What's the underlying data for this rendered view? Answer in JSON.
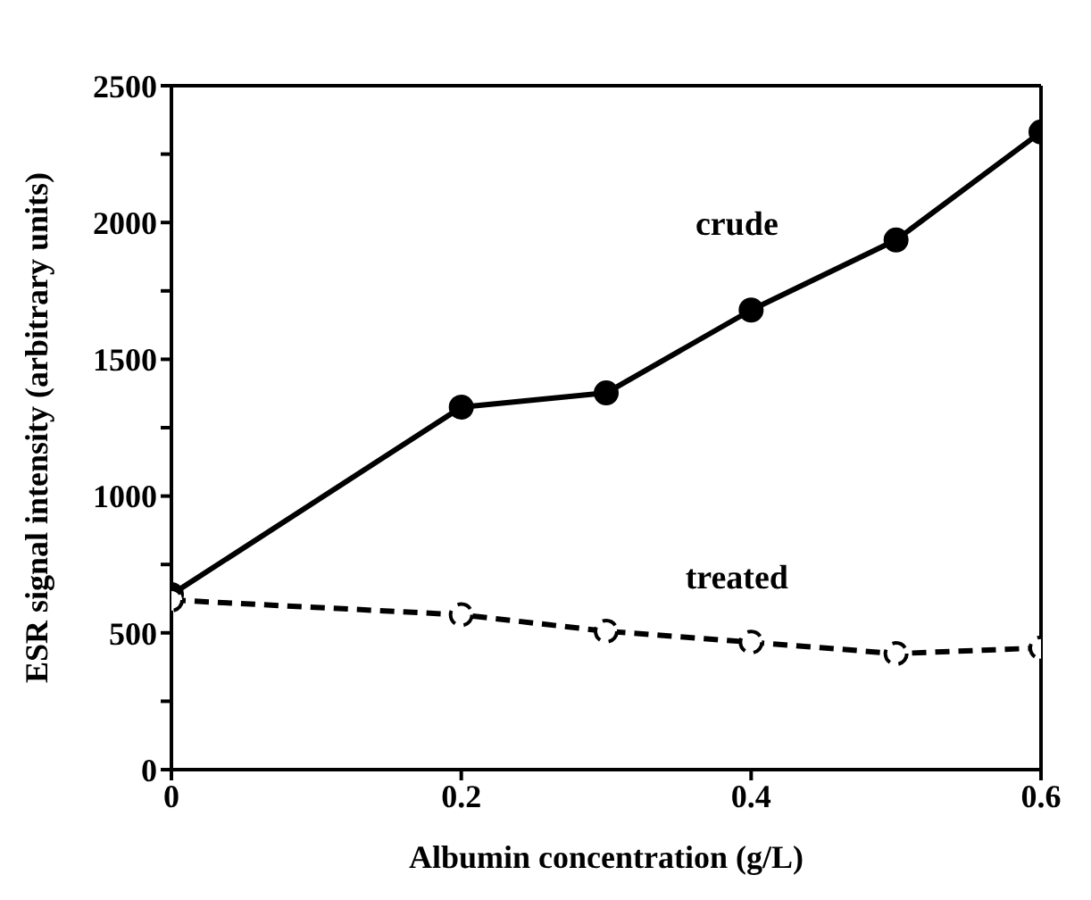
{
  "chart_data": {
    "type": "line",
    "xlabel": "Albumin concentration (g/L)",
    "ylabel": "ESR signal intensity (arbitrary units)",
    "x": [
      0,
      0.2,
      0.3,
      0.4,
      0.5,
      0.6
    ],
    "series": [
      {
        "name": "crude",
        "color": "#000000",
        "values": [
          640,
          1325,
          1377,
          1680,
          1936,
          2331
        ],
        "line_style": "solid"
      },
      {
        "name": "treated",
        "color": "#000000",
        "values": [
          620,
          566,
          506,
          466,
          424,
          445
        ],
        "line_style": "dashed"
      }
    ],
    "xlim": [
      0,
      0.6
    ],
    "xticks": [
      0,
      0.2,
      0.4,
      0.6
    ],
    "ylim": [
      0,
      2500
    ],
    "yticks": [
      0,
      {
        "value": 250,
        "label": null
      },
      500,
      {
        "value": 750,
        "label": null
      },
      1000,
      {
        "value": 1250,
        "label": null
      },
      1500,
      {
        "value": 1750,
        "label": null
      },
      2000,
      {
        "value": 2250,
        "label": null
      },
      2500
    ],
    "grid": false,
    "legend": false,
    "marker": "circle"
  }
}
